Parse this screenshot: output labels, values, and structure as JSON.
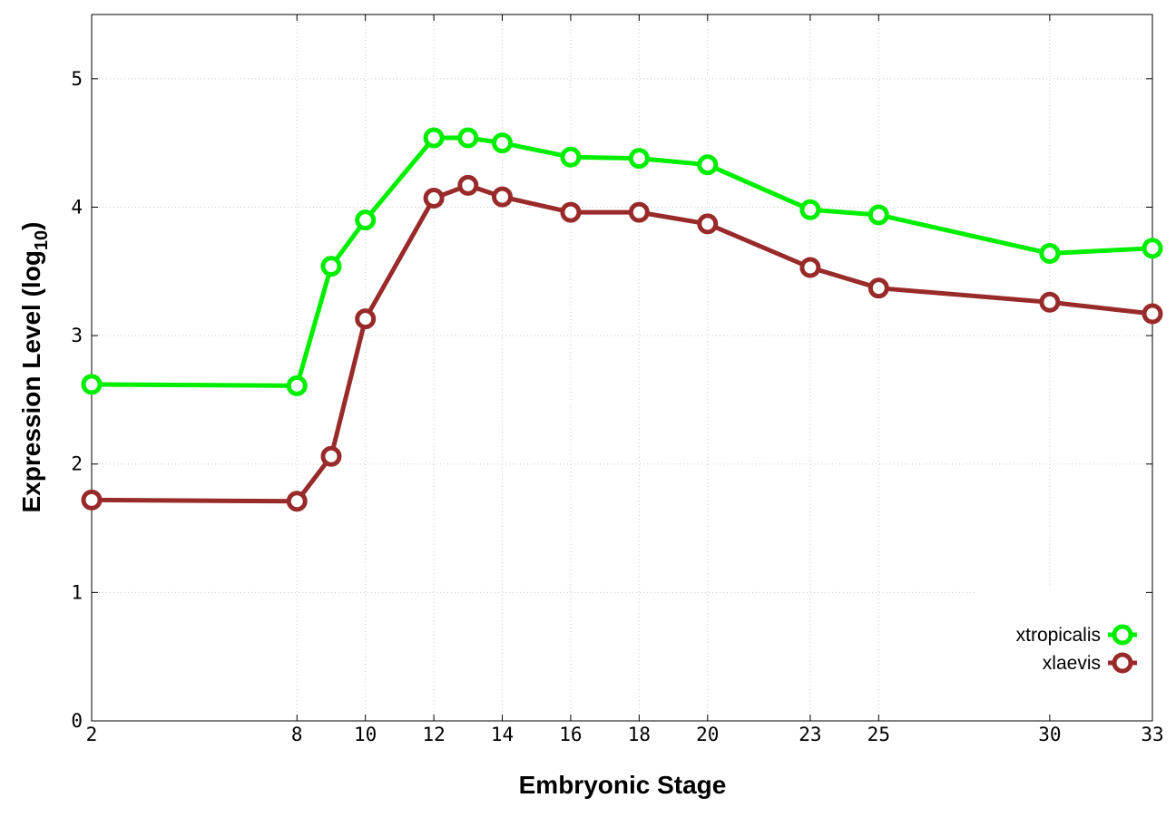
{
  "chart_data": {
    "type": "line",
    "xlabel": "Embryonic Stage",
    "ylabel_main": "Expression Level (log",
    "ylabel_sub": "10",
    "ylabel_tail": ")",
    "x_ticks": [
      2,
      8,
      10,
      12,
      14,
      16,
      18,
      20,
      23,
      25,
      30,
      33
    ],
    "y_ticks": [
      0,
      1,
      2,
      3,
      4,
      5
    ],
    "xlim": [
      2,
      33
    ],
    "ylim": [
      0,
      5.5
    ],
    "grid": true,
    "legend_position": "bottom-right",
    "x": [
      2,
      8,
      9,
      10,
      12,
      13,
      14,
      16,
      18,
      20,
      23,
      25,
      30,
      33
    ],
    "series": [
      {
        "name": "xtropicalis",
        "color": "#00ee00",
        "values": [
          2.62,
          2.61,
          3.54,
          3.9,
          4.54,
          4.54,
          4.5,
          4.39,
          4.38,
          4.33,
          3.98,
          3.94,
          3.64,
          3.68
        ]
      },
      {
        "name": "xlaevis",
        "color": "#992a2a",
        "values": [
          1.72,
          1.71,
          2.06,
          3.13,
          4.07,
          4.17,
          4.08,
          3.96,
          3.96,
          3.87,
          3.53,
          3.37,
          3.26,
          3.17
        ]
      }
    ]
  }
}
